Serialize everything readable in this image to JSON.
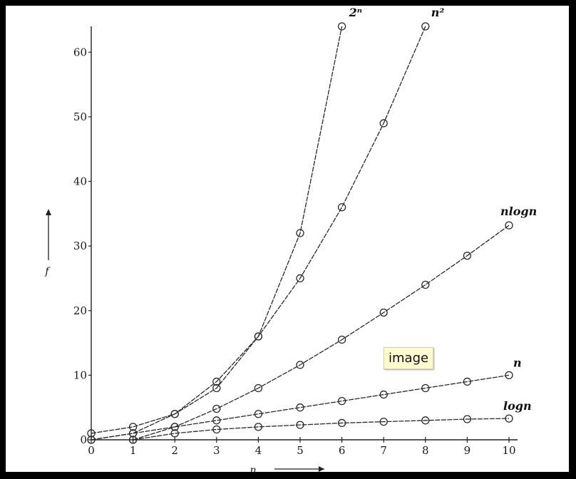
{
  "chart_data": {
    "type": "line",
    "xlabel": "n",
    "ylabel": "f",
    "xlim": [
      0,
      10
    ],
    "ylim": [
      0,
      64
    ],
    "x_ticks": [
      "0",
      "1",
      "2",
      "3",
      "4",
      "5",
      "6",
      "7",
      "8",
      "9",
      "10"
    ],
    "y_ticks": [
      "0",
      "10",
      "20",
      "30",
      "40",
      "50",
      "60"
    ],
    "grid": false,
    "series": [
      {
        "name": "2ⁿ",
        "x": [
          0,
          1,
          2,
          3,
          4,
          5,
          6
        ],
        "y": [
          1,
          2,
          4,
          8,
          16,
          32,
          64
        ]
      },
      {
        "name": "n²",
        "x": [
          0,
          1,
          2,
          3,
          4,
          5,
          6,
          7,
          8
        ],
        "y": [
          0,
          1,
          4,
          9,
          16,
          25,
          36,
          49,
          64
        ]
      },
      {
        "name": "nlogn",
        "x": [
          1,
          2,
          3,
          4,
          5,
          6,
          7,
          8,
          9,
          10
        ],
        "y": [
          0,
          2,
          4.8,
          8,
          11.6,
          15.5,
          19.7,
          24,
          28.5,
          33.2
        ]
      },
      {
        "name": "n",
        "x": [
          0,
          1,
          2,
          3,
          4,
          5,
          6,
          7,
          8,
          9,
          10
        ],
        "y": [
          0,
          1,
          2,
          3,
          4,
          5,
          6,
          7,
          8,
          9,
          10
        ]
      },
      {
        "name": "logn",
        "x": [
          1,
          2,
          3,
          4,
          5,
          6,
          7,
          8,
          9,
          10
        ],
        "y": [
          0,
          1,
          1.6,
          2,
          2.3,
          2.6,
          2.8,
          3,
          3.2,
          3.3
        ]
      }
    ]
  },
  "tooltip": {
    "text": "image"
  }
}
